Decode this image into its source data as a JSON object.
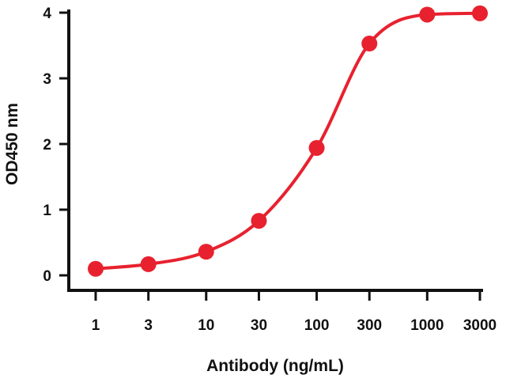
{
  "chart_data": {
    "type": "line",
    "title": "",
    "xlabel": "Antibody (ng/mL)",
    "ylabel": "OD450 nm",
    "x_scale": "log",
    "categories": [
      "1",
      "3",
      "10",
      "30",
      "100",
      "300",
      "1000",
      "3000"
    ],
    "x": [
      1,
      3,
      10,
      30,
      100,
      300,
      1000,
      3000
    ],
    "series": [
      {
        "values": [
          0.1,
          0.17,
          0.36,
          0.83,
          1.94,
          3.53,
          3.97,
          3.99
        ],
        "color": "#e8212f",
        "marker": "circle",
        "smooth": true
      }
    ],
    "ylim": [
      0,
      4
    ],
    "yticks": [
      0,
      1,
      2,
      3,
      4
    ],
    "grid": false,
    "legend": "none"
  },
  "colors": {
    "series": "#e8212f",
    "axis": "#111111",
    "background": "#ffffff"
  }
}
